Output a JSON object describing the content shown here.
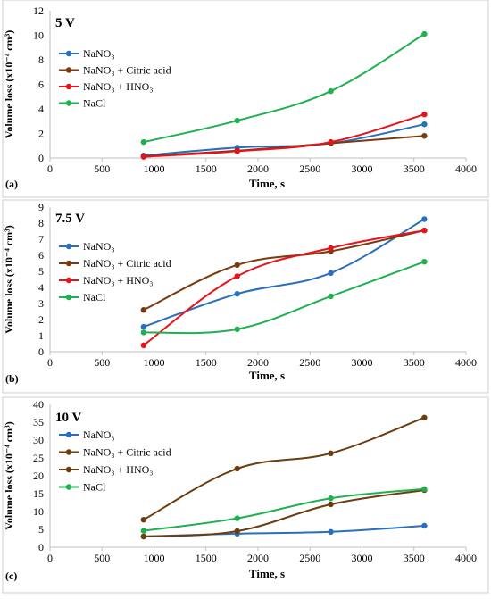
{
  "chart_data": [
    {
      "type": "line",
      "panel_label": "(a)",
      "title": "5 V",
      "xlabel": "Time, s",
      "ylabel": "Volume loss (x10⁻⁴ cm³)",
      "xlim": [
        0,
        4000
      ],
      "ylim": [
        0,
        12
      ],
      "xticks": [
        0,
        500,
        1000,
        1500,
        2000,
        2500,
        3000,
        3500,
        4000
      ],
      "yticks": [
        0,
        2,
        4,
        6,
        8,
        10,
        12
      ],
      "legend_position": "top-left",
      "series": [
        {
          "name": "NaNO₃",
          "color": "#2a6fbe",
          "x": [
            900,
            1800,
            2700,
            3600
          ],
          "y": [
            0.2,
            0.85,
            1.2,
            2.75
          ]
        },
        {
          "name": "NaNO₃ + Citric acid",
          "color": "#7a3b10",
          "x": [
            900,
            1800,
            2700,
            3600
          ],
          "y": [
            0.15,
            0.6,
            1.2,
            1.8
          ]
        },
        {
          "name": "NaNO₃ + HNO₃",
          "color": "#e8121a",
          "x": [
            900,
            1800,
            2700,
            3600
          ],
          "y": [
            0.1,
            0.55,
            1.3,
            3.55
          ]
        },
        {
          "name": "NaCl",
          "color": "#1fb050",
          "x": [
            900,
            1800,
            2700,
            3600
          ],
          "y": [
            1.3,
            3.05,
            5.45,
            10.1
          ]
        }
      ]
    },
    {
      "type": "line",
      "panel_label": "(b)",
      "title": "7.5 V",
      "xlabel": "Time, s",
      "ylabel": "Volume loss (x10⁻⁴ cm³)",
      "xlim": [
        0,
        4000
      ],
      "ylim": [
        0,
        9
      ],
      "xticks": [
        0,
        500,
        1000,
        1500,
        2000,
        2500,
        3000,
        3500,
        4000
      ],
      "yticks": [
        0,
        1,
        2,
        3,
        4,
        5,
        6,
        7,
        8,
        9
      ],
      "legend_position": "top-left",
      "series": [
        {
          "name": "NaNO₃",
          "color": "#2a6fbe",
          "x": [
            900,
            1800,
            2700,
            3600
          ],
          "y": [
            1.55,
            3.6,
            4.9,
            8.25
          ]
        },
        {
          "name": "NaNO₃ + Citric acid",
          "color": "#7a3b10",
          "x": [
            900,
            1800,
            2700,
            3600
          ],
          "y": [
            2.6,
            5.4,
            6.25,
            7.55
          ]
        },
        {
          "name": "NaNO₃ + HNO₃",
          "color": "#e8121a",
          "x": [
            900,
            1800,
            2700,
            3600
          ],
          "y": [
            0.4,
            4.7,
            6.45,
            7.55
          ]
        },
        {
          "name": "NaCl",
          "color": "#1fb050",
          "x": [
            900,
            1800,
            2700,
            3600
          ],
          "y": [
            1.2,
            1.4,
            3.45,
            5.6
          ]
        }
      ]
    },
    {
      "type": "line",
      "panel_label": "(c)",
      "title": "10 V",
      "xlabel": "Time, s",
      "ylabel": "Volume loss (x10⁻⁴ cm³)",
      "xlim": [
        0,
        4000
      ],
      "ylim": [
        0,
        40
      ],
      "xticks": [
        0,
        500,
        1000,
        1500,
        2000,
        2500,
        3000,
        3500,
        4000
      ],
      "yticks": [
        0,
        5,
        10,
        15,
        20,
        25,
        30,
        35,
        40
      ],
      "legend_position": "top-left",
      "series": [
        {
          "name": "NaNO₃",
          "color": "#2a6fbe",
          "x": [
            900,
            1800,
            2700,
            3600
          ],
          "y": [
            3.0,
            3.8,
            4.3,
            6.0
          ]
        },
        {
          "name": "NaNO₃ + Citric acid",
          "color": "#6b3d0f",
          "x": [
            900,
            1800,
            2700,
            3600
          ],
          "y": [
            7.7,
            22.0,
            26.3,
            36.3
          ]
        },
        {
          "name": "NaNO₃ + HNO₃",
          "color": "#6b3d0f",
          "x": [
            900,
            1800,
            2700,
            3600
          ],
          "y": [
            3.0,
            4.5,
            12.0,
            16.0
          ]
        },
        {
          "name": "NaCl",
          "color": "#1fb050",
          "x": [
            900,
            1800,
            2700,
            3600
          ],
          "y": [
            4.6,
            8.1,
            13.7,
            16.3
          ]
        }
      ]
    }
  ]
}
